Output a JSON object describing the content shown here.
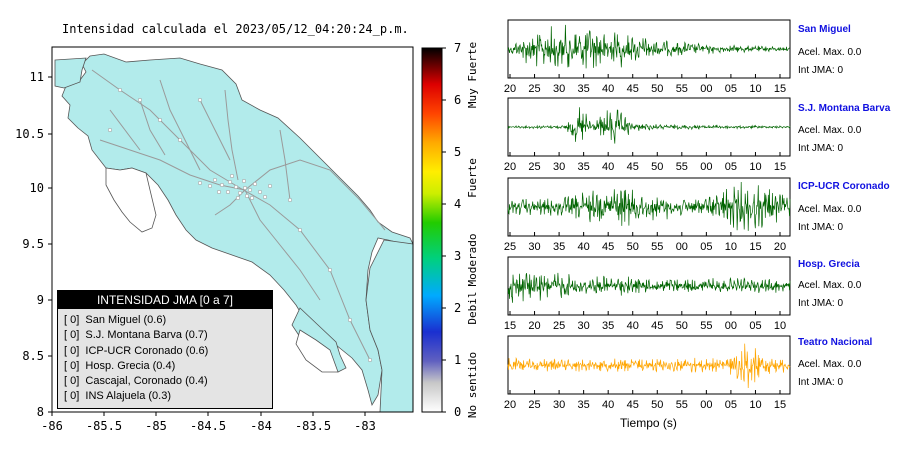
{
  "map": {
    "title": "Intensidad calculada el 2023/05/12_04:20:24_p.m.",
    "x_ticks": [
      "-86",
      "-85.5",
      "-85",
      "-84.5",
      "-84",
      "-83.5",
      "-83"
    ],
    "y_ticks": [
      "11",
      "10.5",
      "10",
      "9.5",
      "9",
      "8.5",
      "8"
    ],
    "colors": {
      "land": "#b2ebeb",
      "sea": "#ffffff",
      "roads": "#9a9a9a"
    }
  },
  "colorbar": {
    "ticks": [
      "7",
      "6",
      "5",
      "4",
      "3",
      "2",
      "1",
      "0"
    ],
    "labels": [
      "Muy Fuerte",
      "Fuerte",
      "Moderado",
      "Debil",
      "No sentido"
    ]
  },
  "legend": {
    "title": "INTENSIDAD JMA [0 a 7]",
    "items": [
      "[ 0]  San Miguel (0.6)",
      "[ 0]  S.J. Montana Barva (0.7)",
      "[ 0]  ICP-UCR Coronado (0.6)",
      "[ 0]  Hosp. Grecia (0.4)",
      "[ 0]  Cascajal, Coronado (0.4)",
      "[ 0]  INS Alajuela (0.3)"
    ]
  },
  "stations": [
    {
      "name": "San Miguel",
      "acel": "Acel. Max. 0.0",
      "int": "Int JMA: 0",
      "ticks": [
        "20",
        "25",
        "30",
        "35",
        "40",
        "45",
        "50",
        "55",
        "00",
        "05",
        "10",
        "15"
      ],
      "color": "#006400"
    },
    {
      "name": "S.J. Montana Barva",
      "acel": "Acel. Max. 0.0",
      "int": "Int JMA: 0",
      "ticks": [
        "20",
        "25",
        "30",
        "35",
        "40",
        "45",
        "50",
        "55",
        "00",
        "05",
        "10",
        "15"
      ],
      "color": "#006400"
    },
    {
      "name": "ICP-UCR Coronado",
      "acel": "Acel. Max. 0.0",
      "int": "Int JMA: 0",
      "ticks": [
        "25",
        "30",
        "35",
        "40",
        "45",
        "50",
        "55",
        "00",
        "05",
        "10",
        "15",
        "20"
      ],
      "color": "#006400"
    },
    {
      "name": "Hosp. Grecia",
      "acel": "Acel. Max. 0.0",
      "int": "Int JMA: 0",
      "ticks": [
        "15",
        "20",
        "25",
        "30",
        "35",
        "40",
        "45",
        "50",
        "55",
        "00",
        "05",
        "10"
      ],
      "color": "#006400"
    },
    {
      "name": "Teatro Nacional",
      "acel": "Acel. Max. 0.0",
      "int": "Int JMA: 0",
      "ticks": [
        "20",
        "25",
        "30",
        "35",
        "40",
        "45",
        "50",
        "55",
        "00",
        "05",
        "10",
        "15"
      ],
      "color": "#ffa500"
    }
  ],
  "time_label": "Tiempo (s)",
  "chart_data": [
    {
      "type": "heatmap",
      "title": "Intensidad calculada el 2023/05/12_04:20:24_p.m.",
      "xlim": [
        -86,
        -82.5
      ],
      "ylim": [
        8,
        11.3
      ],
      "colorbar_range": [
        0,
        7
      ],
      "station_intensity": [
        {
          "station": "San Miguel",
          "jma": 0,
          "value": 0.6
        },
        {
          "station": "S.J. Montana Barva",
          "jma": 0,
          "value": 0.7
        },
        {
          "station": "ICP-UCR Coronado",
          "jma": 0,
          "value": 0.6
        },
        {
          "station": "Hosp. Grecia",
          "jma": 0,
          "value": 0.4
        },
        {
          "station": "Cascajal, Coronado",
          "jma": 0,
          "value": 0.4
        },
        {
          "station": "INS Alajuela",
          "jma": 0,
          "value": 0.3
        }
      ]
    },
    {
      "type": "line",
      "xlabel": "Tiempo (s)",
      "series": [
        {
          "name": "San Miguel",
          "acel_max": 0.0,
          "int_jma": 0
        },
        {
          "name": "S.J. Montana Barva",
          "acel_max": 0.0,
          "int_jma": 0
        },
        {
          "name": "ICP-UCR Coronado",
          "acel_max": 0.0,
          "int_jma": 0
        },
        {
          "name": "Hosp. Grecia",
          "acel_max": 0.0,
          "int_jma": 0
        },
        {
          "name": "Teatro Nacional",
          "acel_max": 0.0,
          "int_jma": 0
        }
      ]
    }
  ]
}
